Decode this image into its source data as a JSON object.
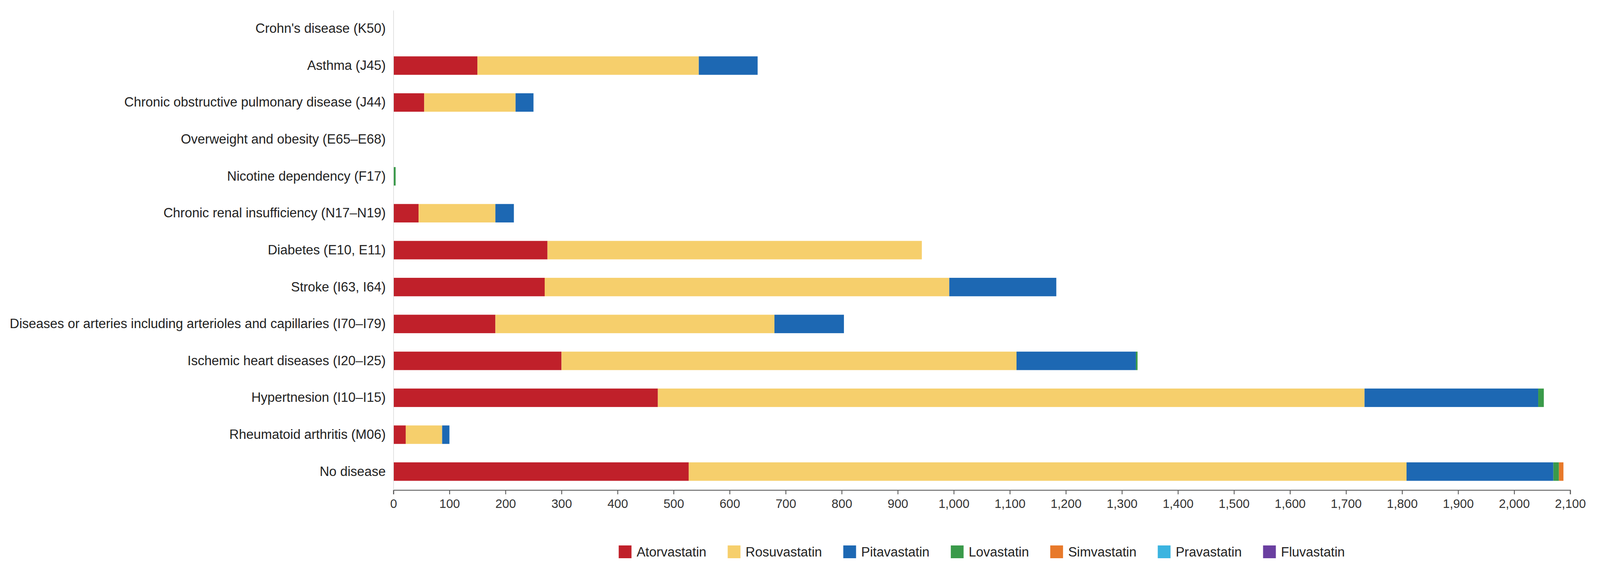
{
  "chart_data": {
    "type": "bar",
    "orientation": "horizontal",
    "stacked": true,
    "grid": false,
    "legend": "bottom",
    "categories": [
      "Crohn's disease (K50)",
      "Asthma (J45)",
      "Chronic obstructive pulmonary disease (J44)",
      "Overweight and obesity (E65–E68)",
      "Nicotine dependency (F17)",
      "Chronic renal insufficiency (N17–N19)",
      "Diabetes (E10, E11)",
      "Stroke (I63, I64)",
      "Diseases or arteries including arterioles and capillaries (I70–I79)",
      "Ischemic heart diseases (I20–I25)",
      "Hypertnesion (I10–I15)",
      "Rheumatoid arthritis (M06)",
      "No disease"
    ],
    "series": [
      {
        "name": "Atorvastatin",
        "color": "#c0202a",
        "values": [
          0,
          150,
          55,
          0,
          0,
          45,
          275,
          270,
          182,
          300,
          472,
          22,
          527
        ]
      },
      {
        "name": "Rosuvastatin",
        "color": "#f6cf6c",
        "values": [
          0,
          395,
          163,
          0,
          0,
          137,
          668,
          722,
          498,
          812,
          1261,
          65,
          1281
        ]
      },
      {
        "name": "Pitavastatin",
        "color": "#1d68b3",
        "values": [
          0,
          105,
          32,
          0,
          0,
          33,
          0,
          191,
          124,
          213,
          310,
          13,
          262
        ]
      },
      {
        "name": "Lovastatin",
        "color": "#3a9a4a",
        "values": [
          0,
          0,
          0,
          0,
          4,
          0,
          0,
          0,
          0,
          3,
          10,
          0,
          10
        ]
      },
      {
        "name": "Simvastatin",
        "color": "#e8792a",
        "values": [
          0,
          0,
          0,
          0,
          0,
          0,
          0,
          0,
          0,
          0,
          0,
          0,
          8
        ]
      },
      {
        "name": "Pravastatin",
        "color": "#3bb4e0",
        "values": [
          0,
          0,
          0,
          0,
          0,
          0,
          0,
          0,
          0,
          0,
          0,
          0,
          0
        ]
      },
      {
        "name": "Fluvastatin",
        "color": "#6a3fa0",
        "values": [
          0,
          0,
          0,
          0,
          0,
          0,
          0,
          0,
          0,
          0,
          0,
          0,
          0
        ]
      }
    ],
    "xlim": [
      0,
      2100
    ],
    "xticks": [
      0,
      100,
      200,
      300,
      400,
      500,
      600,
      700,
      800,
      900,
      {
        "value": 1000,
        "label": "1,000"
      },
      {
        "value": 1100,
        "label": "1,100"
      },
      {
        "value": 1200,
        "label": "1,200"
      },
      {
        "value": 1300,
        "label": "1,300"
      },
      {
        "value": 1400,
        "label": "1,400"
      },
      {
        "value": 1500,
        "label": "1,500"
      },
      {
        "value": 1600,
        "label": "1,600"
      },
      {
        "value": 1700,
        "label": "1,700"
      },
      {
        "value": 1800,
        "label": "1,800"
      },
      {
        "value": 1900,
        "label": "1,900"
      },
      {
        "value": 2000,
        "label": "2,000"
      },
      {
        "value": 2100,
        "label": "2,100"
      }
    ]
  }
}
